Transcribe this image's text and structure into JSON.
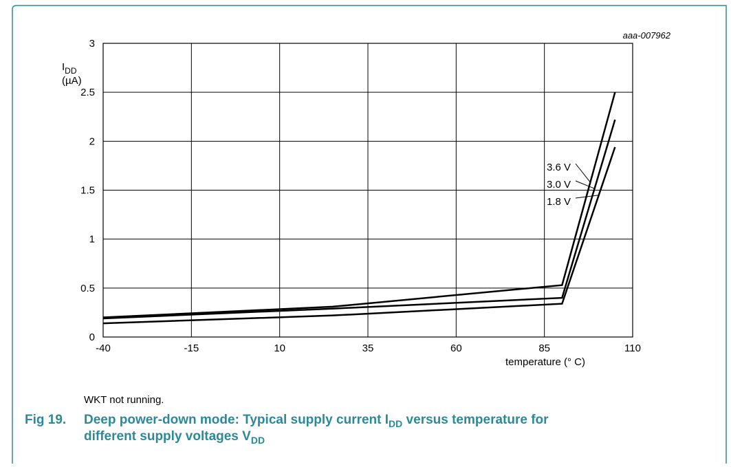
{
  "chart_data": {
    "type": "line",
    "code": "aaa-007962",
    "y_label": [
      "I",
      "DD"
    ],
    "y_unit": "(µA)",
    "x_label": "temperature (° C)",
    "x": [
      -40,
      25,
      90,
      105
    ],
    "series": [
      {
        "name": "3.6 V",
        "color": "#000000",
        "values": [
          0.2,
          0.31,
          0.53,
          2.5
        ]
      },
      {
        "name": "3.0 V",
        "color": "#000000",
        "values": [
          0.19,
          0.29,
          0.4,
          2.22
        ]
      },
      {
        "name": "1.8 V",
        "color": "#000000",
        "values": [
          0.14,
          0.22,
          0.34,
          1.94
        ]
      }
    ],
    "xlim": [
      -40,
      110
    ],
    "xticks": [
      -40,
      -15,
      10,
      35,
      60,
      85,
      110
    ],
    "ylim": [
      0,
      3
    ],
    "yticks": [
      0,
      0.5,
      1,
      1.5,
      2,
      2.5,
      3
    ],
    "grid": true,
    "note": "WKT not running.",
    "fig_number": "Fig 19.",
    "caption_lines": [
      [
        "Deep power-down mode: Typical supply current I",
        "DD",
        " versus temperature for"
      ],
      [
        "different supply voltages V",
        "DD"
      ]
    ]
  }
}
